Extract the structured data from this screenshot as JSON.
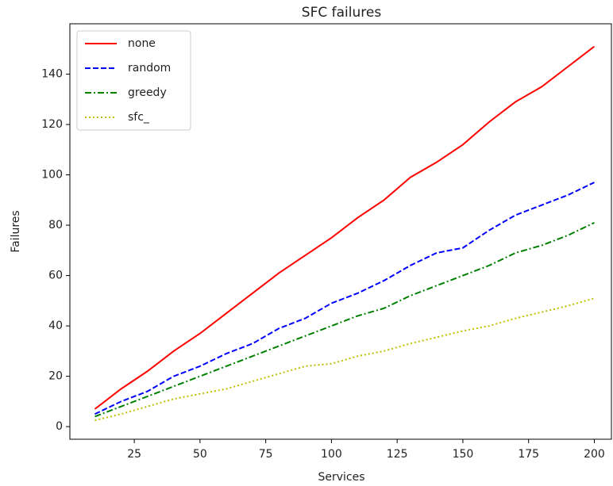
{
  "chart_data": {
    "type": "line",
    "title": "SFC failures",
    "x_label": "Services",
    "y_label": "Failures",
    "x": [
      10,
      20,
      30,
      40,
      50,
      60,
      70,
      80,
      90,
      100,
      110,
      120,
      130,
      140,
      150,
      160,
      170,
      180,
      190,
      200
    ],
    "series": [
      {
        "name": "none",
        "color": "#ff0000",
        "dash": "solid",
        "values": [
          7,
          15,
          22,
          30,
          37,
          45,
          53,
          61,
          68,
          75,
          83,
          90,
          99,
          105,
          112,
          121,
          129,
          135,
          143,
          151
        ]
      },
      {
        "name": "random",
        "color": "#0000ff",
        "dash": "dashed",
        "values": [
          5,
          10,
          14,
          20,
          24,
          29,
          33,
          39,
          43,
          49,
          53,
          58,
          64,
          69,
          71,
          78,
          84,
          88,
          92,
          97
        ]
      },
      {
        "name": "greedy",
        "color": "#008000",
        "dash": "dashdot",
        "values": [
          4,
          8,
          12,
          16,
          20,
          24,
          28,
          32,
          36,
          40,
          44,
          47,
          52,
          56,
          60,
          64,
          69,
          72,
          76,
          81
        ]
      },
      {
        "name": "sfc_",
        "color": "#bfbf00",
        "dash": "dotted",
        "values": [
          2.5,
          5,
          8,
          11,
          13,
          15,
          18,
          21,
          24,
          25,
          28,
          30,
          33,
          35.5,
          38,
          40,
          43,
          45.5,
          48,
          51
        ]
      }
    ],
    "xlim": [
      0.5,
      206.5
    ],
    "ylim": [
      -5,
      160
    ],
    "xticks": [
      25,
      50,
      75,
      100,
      125,
      150,
      175,
      200
    ],
    "yticks": [
      0,
      20,
      40,
      60,
      80,
      100,
      120,
      140
    ],
    "legend": "upper left"
  }
}
